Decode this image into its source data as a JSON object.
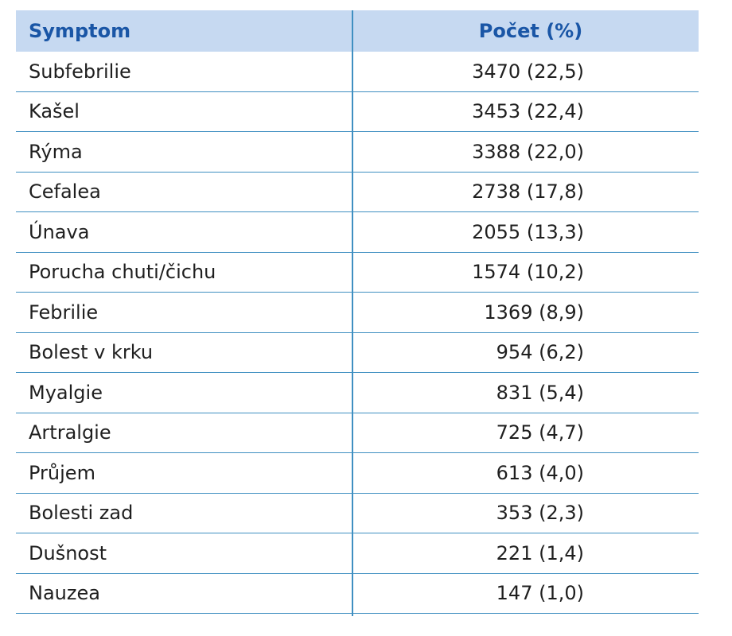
{
  "table": {
    "headers": {
      "symptom": "Symptom",
      "count": "Počet (%)"
    },
    "rows": [
      {
        "symptom": "Subfebrilie",
        "count": "3470 (22,5)"
      },
      {
        "symptom": "Kašel",
        "count": "3453 (22,4)"
      },
      {
        "symptom": "Rýma",
        "count": "3388 (22,0)"
      },
      {
        "symptom": "Cefalea",
        "count": "2738 (17,8)"
      },
      {
        "symptom": "Únava",
        "count": "2055 (13,3)"
      },
      {
        "symptom": "Porucha chuti/čichu",
        "count": "1574 (10,2)"
      },
      {
        "symptom": "Febrilie",
        "count": "1369 (8,9)"
      },
      {
        "symptom": "Bolest v krku",
        "count": "954 (6,2)"
      },
      {
        "symptom": "Myalgie",
        "count": "831 (5,4)"
      },
      {
        "symptom": "Artralgie",
        "count": "725 (4,7)"
      },
      {
        "symptom": "Průjem",
        "count": "613 (4,0)"
      },
      {
        "symptom": "Bolesti zad",
        "count": "353 (2,3)"
      },
      {
        "symptom": "Dušnost",
        "count": "221 (1,4)"
      },
      {
        "symptom": "Nauzea",
        "count": "147 (1,0)"
      }
    ]
  },
  "colors": {
    "header_bg": "#c6d9f1",
    "header_text": "#1a56a6",
    "rule": "#3f8fc1"
  }
}
